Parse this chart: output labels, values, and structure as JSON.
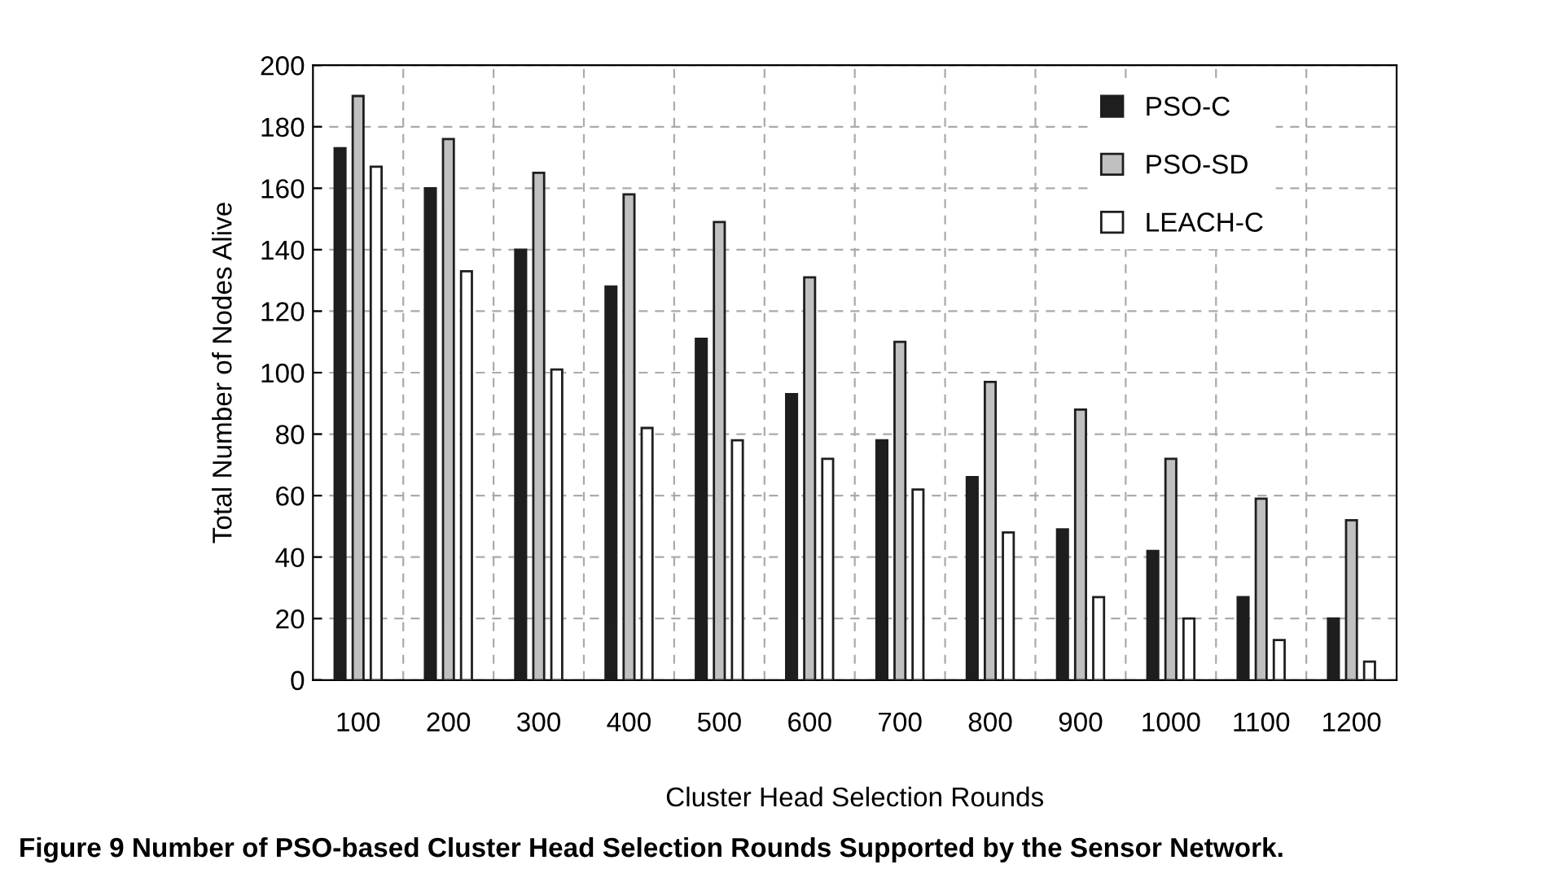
{
  "chart_data": {
    "type": "bar",
    "xlabel": "Cluster Head Selection Rounds",
    "ylabel": "Total Number of Nodes Alive",
    "categories": [
      "100",
      "200",
      "300",
      "400",
      "500",
      "600",
      "700",
      "800",
      "900",
      "1000",
      "1100",
      "1200"
    ],
    "series": [
      {
        "name": "PSO-C",
        "color": "#1e1e1e",
        "values": [
          173,
          160,
          140,
          128,
          111,
          93,
          78,
          66,
          49,
          42,
          27,
          20
        ]
      },
      {
        "name": "PSO-SD",
        "color": "#c0c0c0",
        "values": [
          190,
          176,
          165,
          158,
          149,
          131,
          110,
          97,
          88,
          72,
          59,
          52
        ]
      },
      {
        "name": "LEACH-C",
        "color": "#ffffff",
        "values": [
          167,
          133,
          101,
          82,
          78,
          72,
          62,
          48,
          27,
          20,
          13,
          6
        ]
      }
    ],
    "ylim": [
      0,
      200
    ],
    "yticks": [
      0,
      20,
      40,
      60,
      80,
      100,
      120,
      140,
      160,
      180,
      200
    ],
    "grid": true,
    "legend": "top right",
    "annotations": [
      "Figure 9 Number of PSO-based Cluster Head Selection Rounds Supported by the Sensor Network."
    ]
  }
}
